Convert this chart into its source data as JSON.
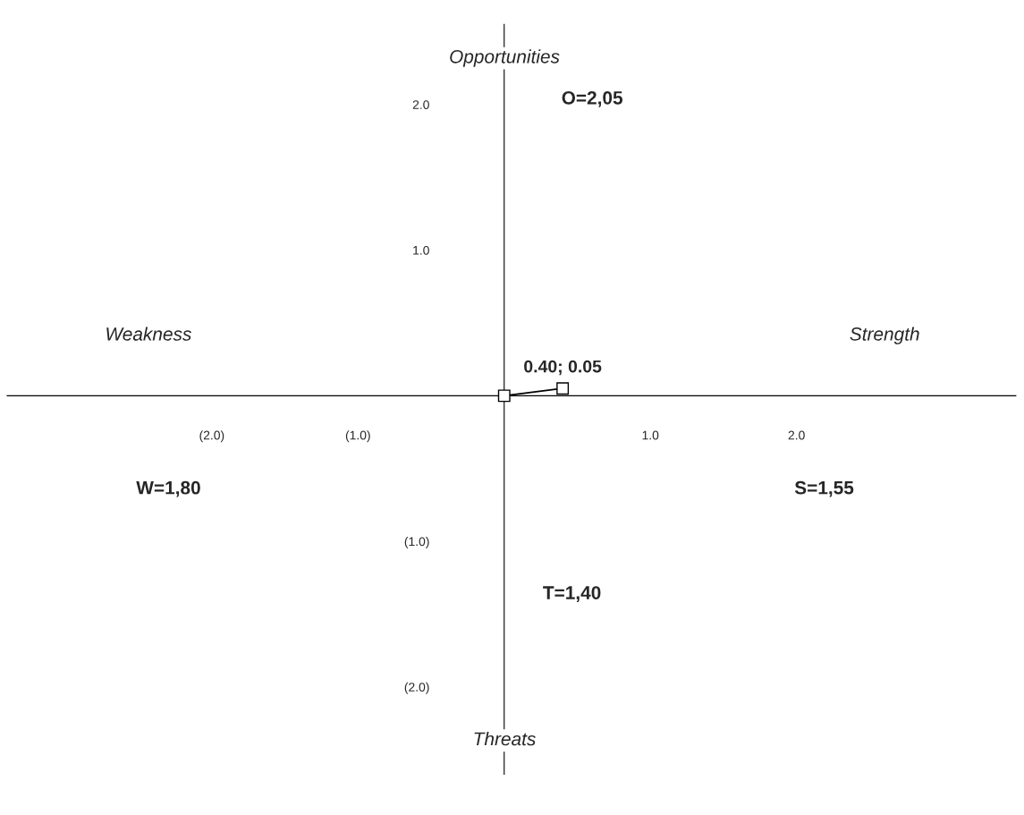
{
  "chart_data": {
    "type": "line",
    "series": [
      {
        "x": [
          0,
          0.4
        ],
        "values": [
          0,
          0.05
        ],
        "color": "#000000",
        "value_labels": [
          null,
          "0.40; 0.05"
        ]
      }
    ],
    "marker": "square",
    "xlim": [
      -3.4,
      3.5
    ],
    "ylim": [
      -2.6,
      2.55
    ],
    "xticks": [
      {
        "value": -2,
        "label": "(2.0)"
      },
      {
        "value": -1,
        "label": "(1.0)"
      },
      {
        "value": 1,
        "label": "1.0"
      },
      {
        "value": 2,
        "label": "2.0"
      }
    ],
    "yticks": [
      {
        "value": 2,
        "label": "2.0"
      },
      {
        "value": 1,
        "label": "1.0"
      },
      {
        "value": -1,
        "label": "(1.0)"
      },
      {
        "value": -2,
        "label": "(2.0)"
      }
    ],
    "grid": false,
    "annotations": [
      "Opportunities",
      "Threats",
      "Weakness",
      "Strength",
      "O=2,05",
      "W=1,80",
      "S=1,55",
      "T=1,40"
    ]
  }
}
